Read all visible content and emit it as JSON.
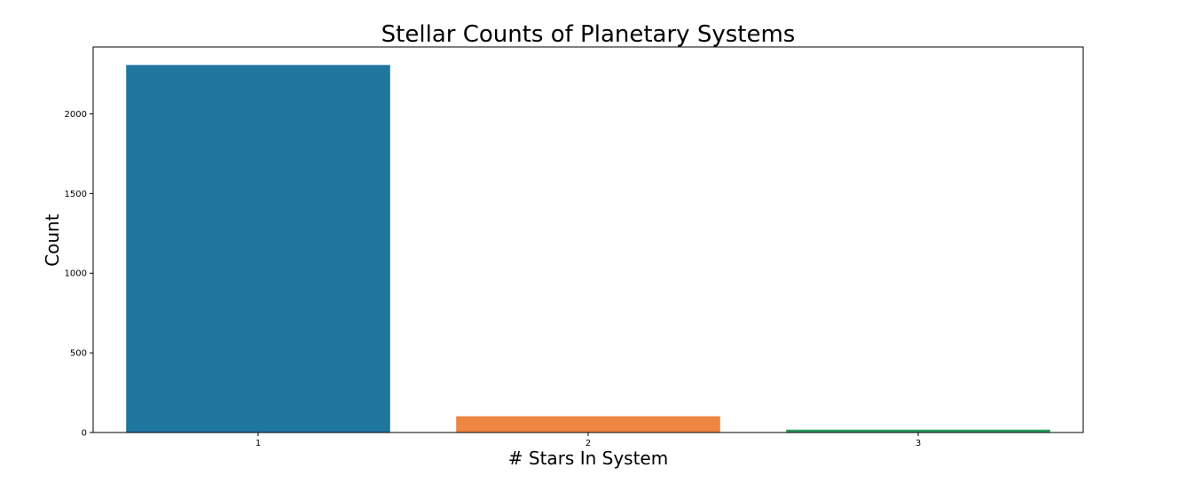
{
  "chart_data": {
    "type": "bar",
    "title": "Stellar Counts of Planetary Systems",
    "xlabel": "# Stars In System",
    "ylabel": "Count",
    "categories": [
      "1",
      "2",
      "3"
    ],
    "values": [
      2307,
      102,
      18
    ],
    "colors": [
      "#1f77a0",
      "#ee8540",
      "#2a9e5f"
    ],
    "ylim": [
      0,
      2420
    ],
    "yticks": [
      0,
      500,
      1000,
      1500,
      2000
    ],
    "grid": false,
    "legend": "none"
  }
}
